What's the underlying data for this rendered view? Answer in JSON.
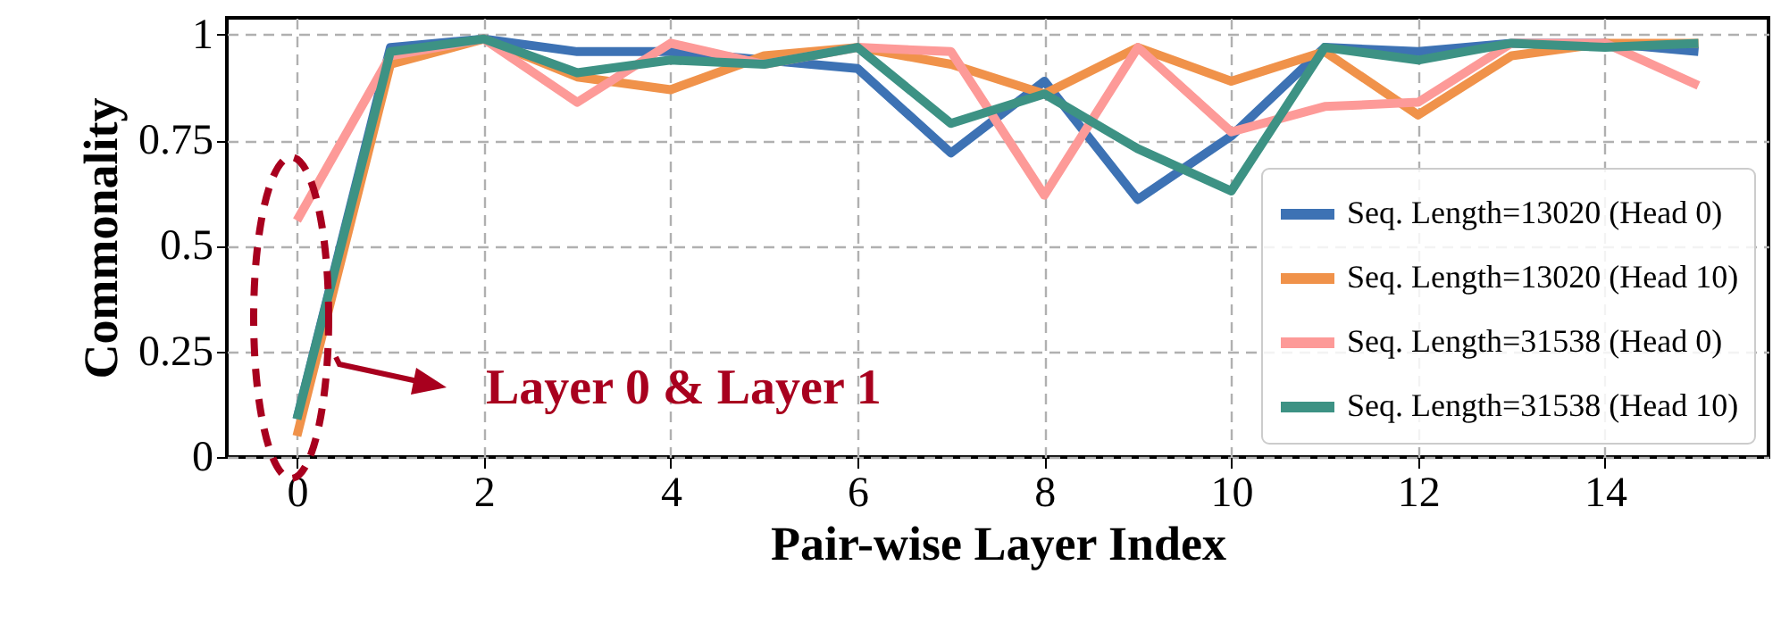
{
  "chart_data": {
    "type": "line",
    "xlabel": "Pair-wise Layer Index",
    "ylabel": "Commonality",
    "x": [
      0,
      1,
      2,
      3,
      4,
      5,
      6,
      7,
      8,
      9,
      10,
      11,
      12,
      13,
      14,
      15
    ],
    "xlim": [
      -0.75,
      15.75
    ],
    "xticks": [
      0,
      2,
      4,
      6,
      8,
      10,
      12,
      14
    ],
    "ylim": [
      0,
      1.04
    ],
    "yticks": [
      0,
      0.25,
      0.5,
      0.75,
      1
    ],
    "grid": true,
    "legend": "bottom right",
    "line_style": "solid",
    "annotations": [
      "Layer 0 & Layer 1"
    ],
    "series": [
      {
        "name": "Seq. Length=13020 (Head 0)",
        "color": "#3d72b4",
        "values": [
          0.09,
          0.97,
          0.99,
          0.96,
          0.96,
          0.94,
          0.92,
          0.72,
          0.89,
          0.61,
          0.76,
          0.97,
          0.96,
          0.98,
          0.98,
          0.96
        ]
      },
      {
        "name": "Seq. Length=13020 (Head 10)",
        "color": "#f0924a",
        "values": [
          0.05,
          0.93,
          0.99,
          0.9,
          0.87,
          0.95,
          0.97,
          0.93,
          0.86,
          0.97,
          0.89,
          0.96,
          0.81,
          0.95,
          0.98,
          0.98
        ]
      },
      {
        "name": "Seq. Length=31538 (Head 0)",
        "color": "#fd9a98",
        "values": [
          0.56,
          0.95,
          0.99,
          0.84,
          0.98,
          0.93,
          0.97,
          0.96,
          0.62,
          0.97,
          0.77,
          0.83,
          0.84,
          0.98,
          0.98,
          0.88
        ]
      },
      {
        "name": "Seq. Length=31538 (Head 10)",
        "color": "#3d9284",
        "values": [
          0.09,
          0.96,
          0.99,
          0.91,
          0.94,
          0.93,
          0.97,
          0.79,
          0.86,
          0.73,
          0.63,
          0.97,
          0.94,
          0.98,
          0.97,
          0.98
        ]
      }
    ]
  }
}
